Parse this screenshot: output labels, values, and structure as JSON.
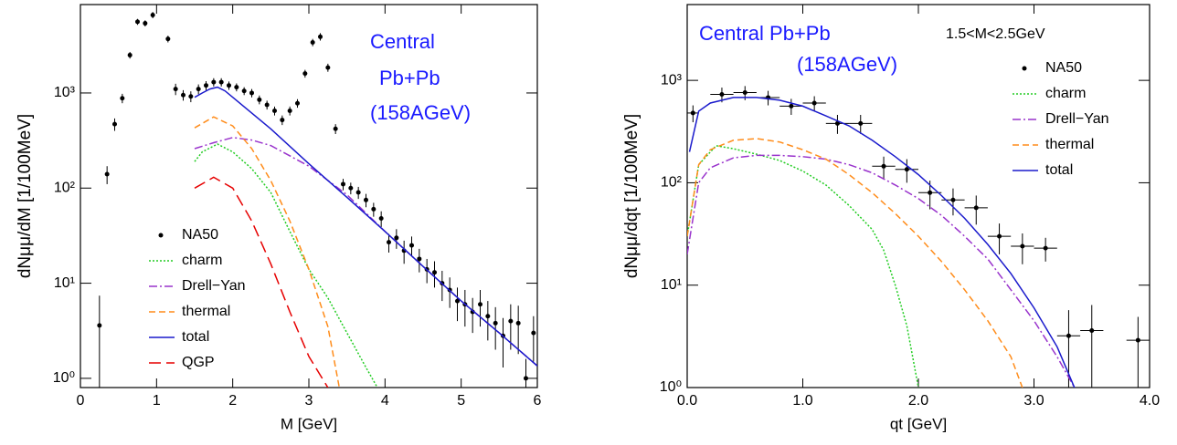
{
  "chart_data": [
    {
      "type": "line",
      "xlabel": "M [GeV]",
      "ylabel": "dNμμ/dM [1/100MeV]",
      "annotations": [
        "Central",
        "Pb+Pb",
        "(158AGeV)"
      ],
      "xlim": [
        0,
        6
      ],
      "ylim": [
        0.8,
        8500
      ],
      "log_y": true,
      "legend": "lower left",
      "xticks": [
        0,
        1,
        2,
        3,
        4,
        5,
        6
      ],
      "yticks": [
        {
          "value": 1,
          "label": "10⁰"
        },
        {
          "value": 10,
          "label": "10¹"
        },
        {
          "value": 100,
          "label": "10²"
        },
        {
          "value": 1000,
          "label": "10³"
        }
      ],
      "series": [
        {
          "name": "NA50",
          "type": "scatter",
          "color": "#000000",
          "x": [
            0.25,
            0.35,
            0.45,
            0.55,
            0.65,
            0.75,
            0.85,
            0.95,
            1.15,
            1.25,
            1.35,
            1.45,
            1.55,
            1.65,
            1.75,
            1.85,
            1.95,
            2.05,
            2.15,
            2.25,
            2.35,
            2.45,
            2.55,
            2.65,
            2.75,
            2.85,
            2.95,
            3.05,
            3.15,
            3.25,
            3.35,
            3.45,
            3.55,
            3.65,
            3.75,
            3.85,
            3.95,
            4.05,
            4.15,
            4.25,
            4.35,
            4.45,
            4.55,
            4.65,
            4.75,
            4.85,
            4.95,
            5.05,
            5.15,
            5.25,
            5.35,
            5.45,
            5.55,
            5.65,
            5.75,
            5.85,
            5.95
          ],
          "values": [
            3.6,
            140,
            470,
            880,
            2500,
            5600,
            5400,
            6600,
            3700,
            1100,
            950,
            920,
            1100,
            1200,
            1300,
            1300,
            1200,
            1150,
            1050,
            1000,
            850,
            750,
            650,
            520,
            650,
            780,
            1600,
            3400,
            3900,
            1850,
            420,
            110,
            100,
            90,
            75,
            60,
            48,
            27,
            30,
            22,
            25,
            18,
            14,
            13,
            10,
            8.5,
            6.5,
            6,
            5,
            6,
            4.5,
            3.8,
            2.8,
            4,
            3.8,
            1,
            3
          ],
          "yerr": [
            3.8,
            30,
            70,
            100,
            200,
            400,
            400,
            500,
            300,
            150,
            120,
            120,
            130,
            130,
            130,
            130,
            120,
            110,
            100,
            100,
            90,
            80,
            70,
            60,
            70,
            80,
            150,
            300,
            350,
            180,
            50,
            15,
            14,
            13,
            12,
            10,
            9,
            6,
            7,
            6,
            6,
            5,
            4,
            4,
            3.5,
            3,
            2.5,
            2.5,
            2,
            2.5,
            2,
            1.8,
            1.5,
            2,
            2,
            0.6,
            1.5
          ]
        },
        {
          "name": "charm",
          "color": "#22cc22",
          "style": "dotted",
          "x": [
            1.5,
            1.6,
            1.8,
            2.0,
            2.25,
            2.5,
            2.75,
            3.0,
            3.25,
            3.5,
            3.75,
            3.9
          ],
          "values": [
            190,
            240,
            290,
            240,
            160,
            90,
            35,
            14,
            7,
            3,
            1.3,
            0.8
          ]
        },
        {
          "name": "Drell−Yan",
          "color": "#9933cc",
          "style": "dashdot",
          "x": [
            1.5,
            1.75,
            2.0,
            2.25,
            2.5,
            3.0,
            3.5,
            4.0,
            4.5,
            5.0,
            5.5,
            6.0
          ],
          "values": [
            260,
            300,
            340,
            320,
            280,
            170,
            85,
            35,
            15,
            6.5,
            3,
            1.35
          ]
        },
        {
          "name": "thermal",
          "color": "#ff8c1a",
          "style": "dashed",
          "x": [
            1.5,
            1.75,
            2.0,
            2.25,
            2.5,
            2.75,
            3.0,
            3.25,
            3.4
          ],
          "values": [
            430,
            560,
            450,
            260,
            120,
            45,
            14,
            3.5,
            0.8
          ]
        },
        {
          "name": "total",
          "color": "#1a1acc",
          "style": "solid",
          "x": [
            1.5,
            1.6,
            1.7,
            1.8,
            1.9,
            2.0,
            2.5,
            3.0,
            3.5,
            4.0,
            4.5,
            5.0,
            5.5,
            6.0
          ],
          "values": [
            900,
            1000,
            1100,
            1150,
            1050,
            900,
            420,
            180,
            80,
            35,
            15,
            6.5,
            3,
            1.35
          ]
        },
        {
          "name": "QGP",
          "color": "#e60000",
          "style": "longdash",
          "x": [
            1.5,
            1.75,
            2.0,
            2.25,
            2.5,
            2.75,
            3.0,
            3.25
          ],
          "values": [
            100,
            130,
            100,
            45,
            16,
            5,
            1.7,
            0.8
          ]
        }
      ]
    },
    {
      "type": "line",
      "xlabel": "qt [GeV]",
      "ylabel": "dNμμ/dqt  [1/100MeV]",
      "annotations": [
        "Central Pb+Pb",
        "(158AGeV)",
        "1.5<M<2.5GeV"
      ],
      "xlim": [
        0,
        4
      ],
      "ylim": [
        1,
        5500
      ],
      "log_y": true,
      "legend": "upper right",
      "xticks": [
        {
          "value": 0,
          "label": "0.0"
        },
        {
          "value": 1,
          "label": "1.0"
        },
        {
          "value": 2,
          "label": "2.0"
        },
        {
          "value": 3,
          "label": "3.0"
        },
        {
          "value": 4,
          "label": "4.0"
        }
      ],
      "yticks": [
        {
          "value": 1,
          "label": "10⁰"
        },
        {
          "value": 10,
          "label": "10¹"
        },
        {
          "value": 100,
          "label": "10²"
        },
        {
          "value": 1000,
          "label": "10³"
        }
      ],
      "series": [
        {
          "name": "NA50",
          "type": "scatter",
          "color": "#000000",
          "x": [
            0.05,
            0.3,
            0.5,
            0.7,
            0.9,
            1.1,
            1.3,
            1.5,
            1.7,
            1.9,
            2.1,
            2.3,
            2.5,
            2.7,
            2.9,
            3.1,
            3.3,
            3.5,
            3.9
          ],
          "xerr": [
            0.05,
            0.1,
            0.1,
            0.1,
            0.1,
            0.1,
            0.1,
            0.1,
            0.1,
            0.1,
            0.1,
            0.1,
            0.1,
            0.1,
            0.1,
            0.1,
            0.1,
            0.1,
            0.1
          ],
          "values": [
            480,
            730,
            760,
            680,
            560,
            600,
            380,
            380,
            145,
            135,
            80,
            68,
            57,
            30,
            24,
            23,
            3.2,
            3.6,
            2.9
          ],
          "yerr": [
            90,
            120,
            120,
            110,
            100,
            100,
            80,
            80,
            35,
            35,
            25,
            20,
            18,
            10,
            8,
            6,
            2.5,
            2.8,
            2
          ]
        },
        {
          "name": "charm",
          "color": "#22cc22",
          "style": "dotted",
          "x": [
            0.0,
            0.1,
            0.25,
            0.4,
            0.6,
            0.8,
            1.0,
            1.2,
            1.4,
            1.6,
            1.7,
            1.8,
            1.9,
            2.0
          ],
          "values": [
            30,
            150,
            230,
            215,
            190,
            165,
            130,
            95,
            60,
            35,
            22,
            10,
            4,
            1
          ]
        },
        {
          "name": "Drell−Yan",
          "color": "#9933cc",
          "style": "dashdot",
          "x": [
            0.0,
            0.1,
            0.2,
            0.4,
            0.6,
            0.8,
            1.0,
            1.2,
            1.4,
            1.6,
            1.8,
            2.0,
            2.2,
            2.4,
            2.6,
            2.8,
            3.0,
            3.2,
            3.35
          ],
          "values": [
            20,
            100,
            140,
            175,
            185,
            185,
            180,
            170,
            150,
            125,
            95,
            70,
            48,
            30,
            18,
            9,
            4.5,
            2,
            1
          ]
        },
        {
          "name": "thermal",
          "color": "#ff8c1a",
          "style": "dashed",
          "x": [
            0.0,
            0.1,
            0.2,
            0.4,
            0.6,
            0.8,
            1.0,
            1.2,
            1.4,
            1.6,
            1.8,
            2.0,
            2.2,
            2.4,
            2.6,
            2.8,
            2.9
          ],
          "values": [
            30,
            150,
            210,
            260,
            270,
            250,
            210,
            170,
            120,
            80,
            50,
            30,
            17,
            9,
            4.5,
            2,
            1
          ]
        },
        {
          "name": "total",
          "color": "#1a1acc",
          "style": "solid",
          "x": [
            0.02,
            0.1,
            0.2,
            0.4,
            0.6,
            0.8,
            1.0,
            1.2,
            1.4,
            1.6,
            1.8,
            2.0,
            2.2,
            2.4,
            2.6,
            2.8,
            3.0,
            3.2,
            3.35
          ],
          "values": [
            200,
            500,
            600,
            680,
            680,
            640,
            560,
            450,
            360,
            260,
            180,
            120,
            75,
            45,
            25,
            13,
            6,
            2.5,
            1
          ]
        }
      ]
    }
  ]
}
